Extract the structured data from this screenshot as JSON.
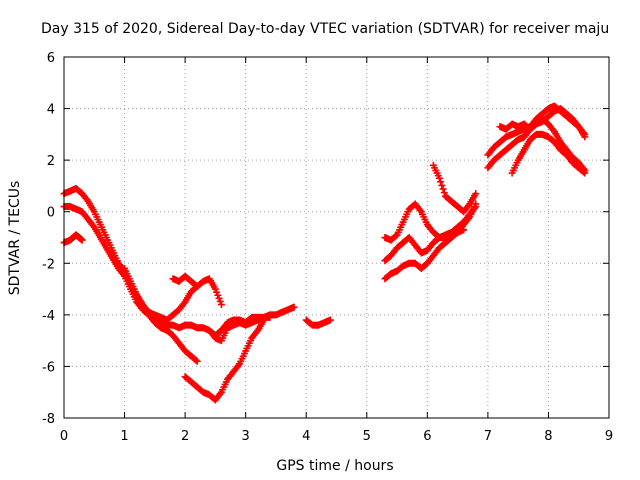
{
  "chart_data": {
    "type": "scatter",
    "title": "Day 315 of 2020, Sidereal Day-to-day VTEC variation (SDTVAR) for receiver maju",
    "xlabel": "GPS time / hours",
    "ylabel": "SDTVAR / TECUs",
    "xlim": [
      0,
      9
    ],
    "ylim": [
      -8,
      6
    ],
    "xticks": [
      "0",
      "1",
      "2",
      "3",
      "4",
      "5",
      "6",
      "7",
      "8",
      "9"
    ],
    "yticks": [
      "6",
      "4",
      "2",
      "0",
      "-2",
      "-4",
      "-6",
      "-8"
    ],
    "grid": true,
    "legend": "none",
    "marker": "+",
    "color": "#ff0000",
    "series": [
      {
        "x": [
          0.0,
          0.1,
          0.2,
          0.3,
          0.4,
          0.5,
          0.6,
          0.7,
          0.8,
          0.9,
          1.0,
          1.1,
          1.2,
          1.3,
          1.4,
          1.5,
          1.6,
          1.7,
          1.8,
          1.9,
          2.0,
          2.1,
          2.2
        ],
        "y": [
          0.7,
          0.8,
          0.9,
          0.7,
          0.4,
          0.0,
          -0.5,
          -1.0,
          -1.5,
          -2.0,
          -2.3,
          -2.8,
          -3.3,
          -3.7,
          -4.0,
          -4.3,
          -4.5,
          -4.6,
          -4.8,
          -5.1,
          -5.4,
          -5.6,
          -5.8
        ]
      },
      {
        "x": [
          0.0,
          0.1,
          0.2,
          0.3,
          0.4,
          0.5,
          0.6,
          0.7,
          0.8,
          0.9,
          1.0,
          1.1,
          1.2,
          1.3,
          1.4,
          1.5,
          1.6,
          1.7,
          1.8,
          1.9,
          2.0,
          2.1,
          2.2,
          2.3,
          2.4,
          2.5,
          2.6,
          2.7,
          2.8,
          2.9,
          3.0,
          3.1,
          3.2,
          3.3,
          3.4,
          3.5,
          3.6,
          3.7,
          3.8
        ],
        "y": [
          0.2,
          0.2,
          0.1,
          0.0,
          -0.3,
          -0.6,
          -1.0,
          -1.4,
          -1.8,
          -2.2,
          -2.5,
          -3.0,
          -3.5,
          -3.8,
          -4.0,
          -4.2,
          -4.3,
          -4.4,
          -4.4,
          -4.5,
          -4.4,
          -4.4,
          -4.5,
          -4.5,
          -4.6,
          -4.8,
          -4.6,
          -4.3,
          -4.2,
          -4.2,
          -4.3,
          -4.1,
          -4.1,
          -4.1,
          -4.0,
          -4.0,
          -3.9,
          -3.8,
          -3.7
        ]
      },
      {
        "x": [
          0.0,
          0.1,
          0.15,
          0.2,
          0.25,
          0.3
        ],
        "y": [
          -1.2,
          -1.1,
          -1.0,
          -0.9,
          -1.0,
          -1.1
        ]
      },
      {
        "x": [
          1.0,
          1.1,
          1.2,
          1.3,
          1.4,
          1.5,
          1.6,
          1.7,
          1.8,
          1.9,
          2.0,
          2.1,
          2.2,
          2.3,
          2.4,
          2.5,
          2.6
        ],
        "y": [
          -2.2,
          -2.7,
          -3.2,
          -3.6,
          -3.9,
          -4.0,
          -4.1,
          -4.2,
          -4.0,
          -3.8,
          -3.5,
          -3.1,
          -2.9,
          -2.7,
          -2.6,
          -3.0,
          -3.6
        ]
      },
      {
        "x": [
          1.8,
          1.9,
          2.0,
          2.1,
          2.2
        ],
        "y": [
          -2.6,
          -2.7,
          -2.5,
          -2.7,
          -2.9
        ]
      },
      {
        "x": [
          2.0,
          2.1,
          2.2,
          2.3,
          2.4,
          2.5,
          2.6,
          2.7,
          2.8,
          2.9,
          3.0,
          3.1,
          3.2,
          3.3
        ],
        "y": [
          -6.4,
          -6.6,
          -6.8,
          -7.0,
          -7.1,
          -7.3,
          -7.0,
          -6.5,
          -6.2,
          -5.9,
          -5.4,
          -4.9,
          -4.6,
          -4.2
        ]
      },
      {
        "x": [
          2.4,
          2.5,
          2.6,
          2.7,
          2.8,
          2.9,
          3.0,
          3.1,
          3.2,
          3.3,
          3.4
        ],
        "y": [
          -4.6,
          -4.9,
          -5.0,
          -4.5,
          -4.4,
          -4.3,
          -4.4,
          -4.3,
          -4.2,
          -4.1,
          -4.1
        ]
      },
      {
        "x": [
          4.0,
          4.1,
          4.2,
          4.3,
          4.4
        ],
        "y": [
          -4.2,
          -4.4,
          -4.4,
          -4.3,
          -4.2
        ]
      },
      {
        "x": [
          5.3,
          5.4,
          5.5,
          5.6,
          5.7,
          5.8,
          5.9,
          6.0,
          6.1,
          6.2,
          6.3,
          6.4,
          6.5,
          6.6,
          6.7,
          6.8
        ],
        "y": [
          -2.6,
          -2.4,
          -2.3,
          -2.1,
          -2.0,
          -2.0,
          -2.2,
          -2.0,
          -1.7,
          -1.4,
          -1.2,
          -1.0,
          -0.8,
          -0.5,
          -0.2,
          0.3
        ]
      },
      {
        "x": [
          5.3,
          5.4,
          5.5,
          5.6,
          5.7,
          5.8,
          5.9,
          6.0,
          6.1,
          6.2,
          6.3,
          6.4,
          6.5,
          6.6,
          6.7,
          6.8
        ],
        "y": [
          -1.9,
          -1.7,
          -1.4,
          -1.2,
          -1.0,
          -1.3,
          -1.6,
          -1.5,
          -1.2,
          -1.0,
          -0.9,
          -0.8,
          -0.6,
          -0.4,
          -0.1,
          0.2
        ]
      },
      {
        "x": [
          5.3,
          5.4,
          5.5,
          5.6,
          5.7,
          5.8,
          5.9,
          6.0,
          6.1,
          6.2,
          6.3,
          6.4,
          6.5,
          6.6
        ],
        "y": [
          -1.0,
          -1.1,
          -0.9,
          -0.4,
          0.1,
          0.3,
          0.0,
          -0.5,
          -0.8,
          -1.0,
          -1.0,
          -0.9,
          -0.8,
          -0.7
        ]
      },
      {
        "x": [
          6.1,
          6.2,
          6.3,
          6.4,
          6.5,
          6.6,
          6.7,
          6.8
        ],
        "y": [
          1.8,
          1.3,
          0.6,
          0.4,
          0.2,
          0.0,
          0.3,
          0.7
        ]
      },
      {
        "x": [
          7.0,
          7.1,
          7.2,
          7.3,
          7.4,
          7.5,
          7.6,
          7.7,
          7.8,
          7.9,
          8.0,
          8.1,
          8.2,
          8.3,
          8.4,
          8.5,
          8.6
        ],
        "y": [
          1.7,
          2.0,
          2.2,
          2.4,
          2.6,
          2.8,
          2.9,
          3.2,
          3.4,
          3.5,
          3.7,
          3.9,
          4.0,
          3.8,
          3.6,
          3.3,
          2.9
        ]
      },
      {
        "x": [
          7.2,
          7.3,
          7.4,
          7.5,
          7.6,
          7.7,
          7.8,
          7.9,
          8.0,
          8.1,
          8.2,
          8.3,
          8.4,
          8.5,
          8.6
        ],
        "y": [
          3.3,
          3.2,
          3.4,
          3.3,
          3.4,
          3.2,
          3.5,
          3.6,
          3.4,
          3.1,
          2.7,
          2.4,
          2.1,
          1.9,
          1.6
        ]
      },
      {
        "x": [
          7.4,
          7.5,
          7.6,
          7.7,
          7.8,
          7.9,
          8.0,
          8.1,
          8.2,
          8.3,
          8.4,
          8.5,
          8.6
        ],
        "y": [
          1.5,
          2.0,
          2.4,
          2.8,
          3.0,
          3.0,
          2.9,
          2.7,
          2.4,
          2.2,
          1.9,
          1.7,
          1.5
        ]
      },
      {
        "x": [
          7.0,
          7.1,
          7.2,
          7.3,
          7.4,
          7.5,
          7.6,
          7.7,
          7.8,
          7.9,
          8.0,
          8.1,
          8.2,
          8.3,
          8.4,
          8.5,
          8.6
        ],
        "y": [
          2.2,
          2.5,
          2.7,
          2.9,
          3.0,
          3.1,
          3.2,
          3.3,
          3.6,
          3.8,
          4.0,
          4.1,
          3.9,
          3.7,
          3.5,
          3.3,
          3.0
        ]
      }
    ]
  }
}
